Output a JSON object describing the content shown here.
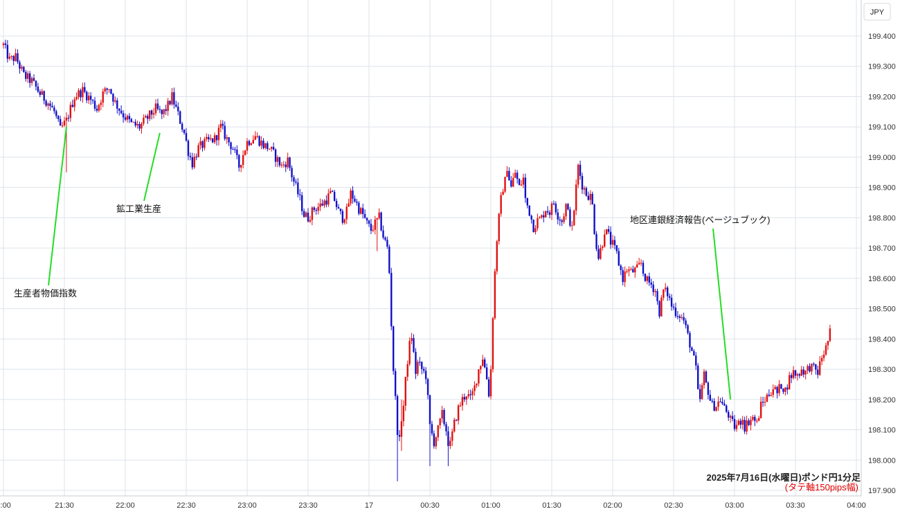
{
  "chart_data": {
    "type": "candlestick",
    "unit": "JPY",
    "caption": "2025年7月16日(水曜日)ポンド円1分足",
    "caption_note": "(タテ軸150pips幅)",
    "ylim": [
      197.9,
      199.43
    ],
    "y_ticks": [
      "199.400",
      "199.300",
      "199.200",
      "199.100",
      "199.000",
      "198.900",
      "198.800",
      "198.700",
      "198.600",
      "198.500",
      "198.400",
      "198.300",
      "198.200",
      "198.100",
      "198.000",
      "197.900"
    ],
    "y_tick_values": [
      199.4,
      199.3,
      199.2,
      199.1,
      199.0,
      198.9,
      198.8,
      198.7,
      198.6,
      198.5,
      198.4,
      198.3,
      198.2,
      198.1,
      198.0,
      197.9
    ],
    "x_ticks": [
      "1:00",
      "21:30",
      "22:00",
      "22:30",
      "23:00",
      "23:30",
      "17",
      "00:30",
      "01:00",
      "01:30",
      "02:00",
      "02:30",
      "03:00",
      "03:30",
      "04:00"
    ],
    "x_tick_minutes": [
      0,
      30,
      60,
      90,
      120,
      150,
      180,
      210,
      240,
      270,
      300,
      330,
      360,
      390,
      420
    ],
    "x_range_minutes": [
      0,
      425
    ],
    "grid": true,
    "colors": {
      "up": "#e01010",
      "down": "#1010c8",
      "annotation_line": "#22dd22",
      "grid": "#dde3ea"
    },
    "path_points": [
      [
        0,
        199.37
      ],
      [
        3,
        199.32
      ],
      [
        6,
        199.33
      ],
      [
        10,
        199.27
      ],
      [
        14,
        199.25
      ],
      [
        18,
        199.21
      ],
      [
        22,
        199.18
      ],
      [
        25,
        199.15
      ],
      [
        28,
        199.09
      ],
      [
        31,
        199.12
      ],
      [
        35,
        199.2
      ],
      [
        39,
        199.22
      ],
      [
        43,
        199.19
      ],
      [
        46,
        199.16
      ],
      [
        49,
        199.21
      ],
      [
        52,
        199.23
      ],
      [
        55,
        199.18
      ],
      [
        59,
        199.14
      ],
      [
        63,
        199.11
      ],
      [
        67,
        199.1
      ],
      [
        71,
        199.13
      ],
      [
        75,
        199.16
      ],
      [
        78,
        199.14
      ],
      [
        81,
        199.17
      ],
      [
        83,
        199.2
      ],
      [
        86,
        199.14
      ],
      [
        89,
        199.08
      ],
      [
        91,
        199.02
      ],
      [
        93,
        198.98
      ],
      [
        96,
        199.03
      ],
      [
        100,
        199.05
      ],
      [
        104,
        199.06
      ],
      [
        107,
        199.1
      ],
      [
        110,
        199.06
      ],
      [
        113,
        199.03
      ],
      [
        116,
        198.97
      ],
      [
        120,
        199.05
      ],
      [
        124,
        199.07
      ],
      [
        128,
        199.04
      ],
      [
        131,
        199.03
      ],
      [
        134,
        199.0
      ],
      [
        137,
        198.97
      ],
      [
        140,
        198.99
      ],
      [
        142,
        198.94
      ],
      [
        144,
        198.9
      ],
      [
        146,
        198.86
      ],
      [
        148,
        198.81
      ],
      [
        150,
        198.8
      ],
      [
        153,
        198.83
      ],
      [
        156,
        198.84
      ],
      [
        159,
        198.86
      ],
      [
        161,
        198.88
      ],
      [
        163,
        198.86
      ],
      [
        165,
        198.82
      ],
      [
        167,
        198.8
      ],
      [
        169,
        198.82
      ],
      [
        171,
        198.88
      ],
      [
        173,
        198.86
      ],
      [
        175,
        198.83
      ],
      [
        177,
        198.81
      ],
      [
        179,
        198.78
      ],
      [
        181,
        198.76
      ],
      [
        183,
        198.78
      ],
      [
        185,
        198.8
      ],
      [
        187,
        198.74
      ],
      [
        189,
        198.7
      ],
      [
        190,
        198.62
      ],
      [
        191,
        198.45
      ],
      [
        192,
        198.3
      ],
      [
        193,
        198.2
      ],
      [
        194,
        198.1
      ],
      [
        195,
        198.06
      ],
      [
        196,
        198.14
      ],
      [
        197,
        198.18
      ],
      [
        198,
        198.26
      ],
      [
        199,
        198.33
      ],
      [
        200,
        198.38
      ],
      [
        201,
        198.41
      ],
      [
        202,
        198.35
      ],
      [
        203,
        198.29
      ],
      [
        204,
        198.32
      ],
      [
        206,
        198.3
      ],
      [
        208,
        198.28
      ],
      [
        209,
        198.2
      ],
      [
        210,
        198.11
      ],
      [
        212,
        198.06
      ],
      [
        214,
        198.1
      ],
      [
        216,
        198.15
      ],
      [
        218,
        198.1
      ],
      [
        219,
        198.06
      ],
      [
        220,
        198.05
      ],
      [
        222,
        198.12
      ],
      [
        224,
        198.17
      ],
      [
        226,
        198.2
      ],
      [
        228,
        198.22
      ],
      [
        230,
        198.2
      ],
      [
        232,
        198.24
      ],
      [
        234,
        198.3
      ],
      [
        236,
        198.34
      ],
      [
        238,
        198.27
      ],
      [
        239,
        198.22
      ],
      [
        240,
        198.3
      ],
      [
        241,
        198.48
      ],
      [
        242,
        198.62
      ],
      [
        243,
        198.73
      ],
      [
        244,
        198.8
      ],
      [
        245,
        198.86
      ],
      [
        246,
        198.9
      ],
      [
        247,
        198.92
      ],
      [
        248,
        198.97
      ],
      [
        249,
        198.93
      ],
      [
        250,
        198.9
      ],
      [
        252,
        198.95
      ],
      [
        254,
        198.9
      ],
      [
        256,
        198.93
      ],
      [
        257,
        198.86
      ],
      [
        259,
        198.82
      ],
      [
        261,
        198.77
      ],
      [
        263,
        198.79
      ],
      [
        265,
        198.8
      ],
      [
        267,
        198.83
      ],
      [
        269,
        198.82
      ],
      [
        271,
        198.85
      ],
      [
        273,
        198.81
      ],
      [
        275,
        198.79
      ],
      [
        277,
        198.84
      ],
      [
        279,
        198.79
      ],
      [
        280,
        198.76
      ],
      [
        281,
        198.83
      ],
      [
        282,
        198.9
      ],
      [
        283,
        198.97
      ],
      [
        284,
        198.94
      ],
      [
        285,
        198.91
      ],
      [
        287,
        198.88
      ],
      [
        289,
        198.87
      ],
      [
        290,
        198.84
      ],
      [
        291,
        198.76
      ],
      [
        292,
        198.71
      ],
      [
        293,
        198.67
      ],
      [
        295,
        198.72
      ],
      [
        296,
        198.76
      ],
      [
        298,
        198.74
      ],
      [
        299,
        198.72
      ],
      [
        300,
        198.71
      ],
      [
        302,
        198.68
      ],
      [
        303,
        198.65
      ],
      [
        305,
        198.6
      ],
      [
        307,
        198.63
      ],
      [
        309,
        198.62
      ],
      [
        312,
        198.63
      ],
      [
        314,
        198.65
      ],
      [
        315,
        198.62
      ],
      [
        317,
        198.59
      ],
      [
        319,
        198.58
      ],
      [
        321,
        198.56
      ],
      [
        322,
        198.52
      ],
      [
        323,
        198.49
      ],
      [
        325,
        198.56
      ],
      [
        327,
        198.55
      ],
      [
        329,
        198.51
      ],
      [
        331,
        198.49
      ],
      [
        333,
        198.48
      ],
      [
        335,
        198.46
      ],
      [
        337,
        198.41
      ],
      [
        339,
        198.36
      ],
      [
        341,
        198.3
      ],
      [
        342,
        198.22
      ],
      [
        343,
        198.2
      ],
      [
        344,
        198.24
      ],
      [
        345,
        198.28
      ],
      [
        346,
        198.25
      ],
      [
        347,
        198.23
      ],
      [
        348,
        198.2
      ],
      [
        349,
        198.18
      ],
      [
        351,
        198.18
      ],
      [
        353,
        198.2
      ],
      [
        355,
        198.17
      ],
      [
        357,
        198.15
      ],
      [
        358,
        198.13
      ],
      [
        360,
        198.11
      ],
      [
        362,
        198.12
      ],
      [
        364,
        198.14
      ],
      [
        365,
        198.11
      ],
      [
        367,
        198.13
      ],
      [
        369,
        198.14
      ],
      [
        371,
        198.12
      ],
      [
        373,
        198.18
      ],
      [
        375,
        198.2
      ],
      [
        377,
        198.22
      ],
      [
        379,
        198.24
      ],
      [
        381,
        198.22
      ],
      [
        383,
        198.25
      ],
      [
        385,
        198.23
      ],
      [
        387,
        198.27
      ],
      [
        389,
        198.29
      ],
      [
        391,
        198.28
      ],
      [
        393,
        198.3
      ],
      [
        395,
        198.29
      ],
      [
        397,
        198.31
      ],
      [
        399,
        198.3
      ],
      [
        401,
        198.29
      ],
      [
        403,
        198.34
      ],
      [
        405,
        198.37
      ],
      [
        407,
        198.42
      ]
    ],
    "spikes": [
      [
        31,
        199.12,
        198.95
      ],
      [
        194,
        198.1,
        197.93
      ],
      [
        196,
        198.2,
        198.03
      ],
      [
        210,
        198.11,
        197.98
      ],
      [
        219,
        198.06,
        197.98
      ],
      [
        184,
        198.8,
        198.69
      ]
    ],
    "annotations": [
      {
        "label": "生産者物価指数",
        "minute": 31,
        "price": 199.1
      },
      {
        "label": "鉱工業生産",
        "minute": 77,
        "price": 199.08
      },
      {
        "label": "地区連銀経済報告(ベージュブック)",
        "minute": 358,
        "price": 198.2
      }
    ]
  }
}
